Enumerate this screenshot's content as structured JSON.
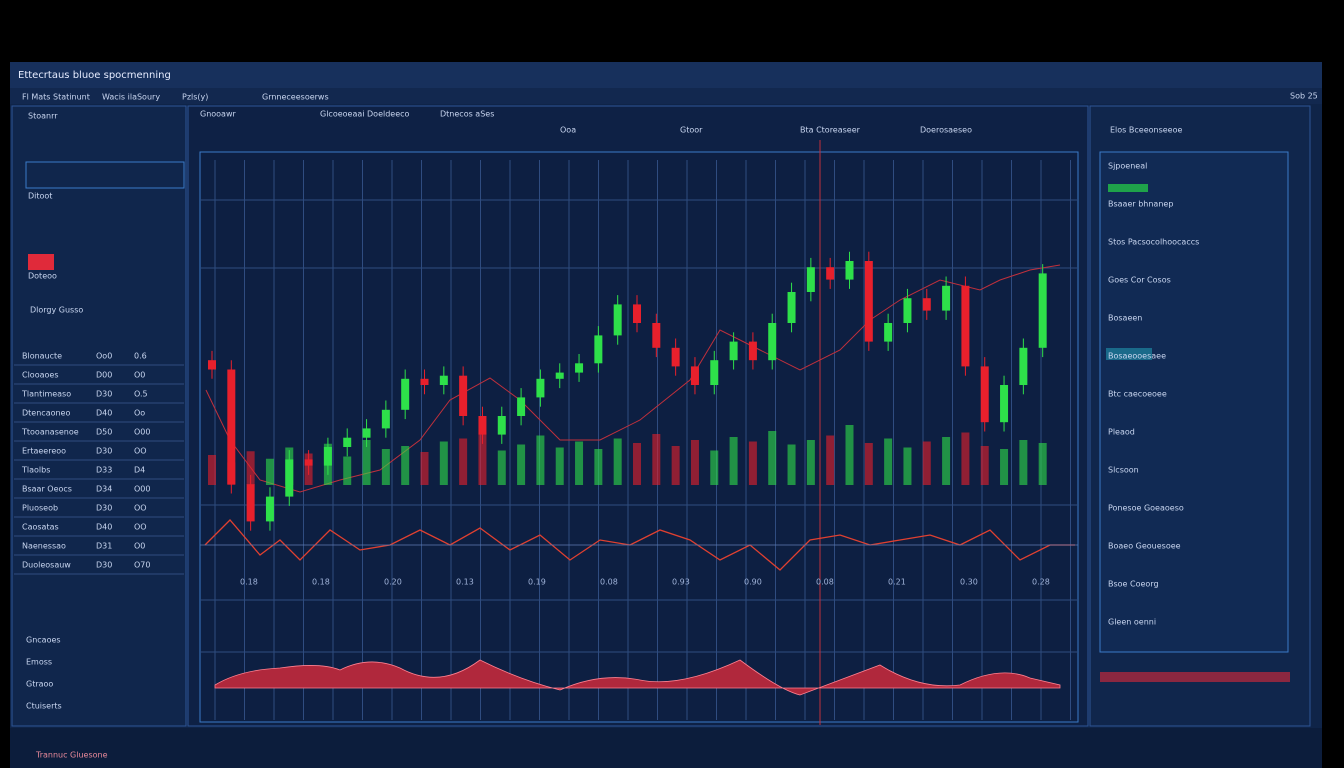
{
  "header": {
    "title": "Ettecrtaus bluoe spocmenning",
    "menu": [
      "Fl Mats Statinunt",
      "Wacis ilaSoury",
      "Pzls(y)",
      "Grnneceesoerws"
    ],
    "status": "Sob 25"
  },
  "toolbar": [
    "Gnooawr",
    "Glcoeoeaai Doeldeeco",
    "Dtnecos aSes",
    "Ooa",
    "Gtoor",
    "Bta Ctoreaseer",
    "Doerosaeseo"
  ],
  "sidebar": {
    "top": [
      "Stoanrr",
      "Ditoot",
      "Doteoo"
    ],
    "section": "Dlorgy Gusso",
    "rows": [
      [
        "Blonaucte",
        "Oo0",
        "0.6"
      ],
      [
        "Clooaoes",
        "D00",
        "O0"
      ],
      [
        "Tlantimeaso",
        "D30",
        "O.5"
      ],
      [
        "Dtencaoneo",
        "D40",
        "Oo"
      ],
      [
        "Ttooanasenoe",
        "D50",
        "O00"
      ],
      [
        "Ertaeereoo",
        "D30",
        "OO"
      ],
      [
        "Tlaolbs",
        "D33",
        "D4"
      ],
      [
        "Bsaar Oeocs",
        "D34",
        "O00"
      ],
      [
        "Pluoseob",
        "D30",
        "OO"
      ],
      [
        "Caosatas",
        "D40",
        "OO"
      ],
      [
        "Naenessao",
        "D31",
        "O0"
      ],
      [
        "Duoleosauw",
        "D30",
        "O70"
      ]
    ],
    "bottom": [
      "Gncaoes",
      "Emoss",
      "Gtraoo",
      "Ctuiserts"
    ],
    "footer": "Trannuc Gluesone"
  },
  "chart_labels": [
    "0.18",
    "0.18",
    "0.20",
    "0.13",
    "0.19",
    "0.08",
    "0.93",
    "0.90",
    "0.08",
    "0.21",
    "0.30",
    "0.28"
  ],
  "chart_data": {
    "type": "candlestick",
    "open": [
      58,
      55,
      18,
      6,
      14,
      26,
      24,
      30,
      33,
      36,
      42,
      52,
      50,
      53,
      40,
      34,
      40,
      46,
      52,
      54,
      57,
      66,
      76,
      70,
      62,
      56,
      50,
      58,
      64,
      58,
      70,
      80,
      88,
      84,
      90,
      64,
      70,
      78,
      74,
      82,
      56,
      38,
      50,
      62
    ],
    "high": [
      61,
      58,
      21,
      17,
      29,
      29,
      33,
      36,
      39,
      45,
      55,
      55,
      56,
      56,
      43,
      43,
      49,
      55,
      57,
      60,
      69,
      79,
      79,
      73,
      65,
      59,
      61,
      67,
      67,
      73,
      83,
      91,
      91,
      93,
      93,
      73,
      81,
      81,
      85,
      85,
      59,
      53,
      65,
      89
    ],
    "low": [
      52,
      15,
      3,
      3,
      11,
      21,
      21,
      27,
      30,
      33,
      39,
      47,
      47,
      37,
      31,
      31,
      37,
      43,
      49,
      51,
      54,
      63,
      67,
      59,
      53,
      47,
      47,
      55,
      55,
      55,
      67,
      77,
      81,
      81,
      61,
      61,
      67,
      71,
      71,
      53,
      35,
      35,
      47,
      59
    ],
    "close": [
      55,
      18,
      6,
      14,
      26,
      24,
      30,
      33,
      36,
      42,
      52,
      50,
      53,
      40,
      34,
      40,
      46,
      52,
      54,
      57,
      66,
      76,
      70,
      62,
      56,
      50,
      58,
      64,
      58,
      70,
      80,
      88,
      84,
      90,
      64,
      70,
      78,
      74,
      82,
      56,
      38,
      50,
      62,
      86
    ],
    "volume": [
      40,
      30,
      45,
      35,
      50,
      42,
      55,
      38,
      60,
      48,
      52,
      44,
      58,
      62,
      70,
      46,
      54,
      66,
      50,
      58,
      48,
      62,
      56,
      68,
      52,
      60,
      46,
      64,
      58,
      72,
      54,
      60,
      66,
      80,
      56,
      62,
      50,
      58,
      64,
      70,
      52,
      48,
      60,
      56
    ],
    "ylim": [
      0,
      100
    ],
    "up_color": "#2ee04a",
    "down_color": "#e8202c"
  },
  "right_panel": {
    "head": "Elos Bceeonseeoe",
    "items": [
      "Sjpoeneal",
      "Bsaaer bhnanep",
      "Stos Pacsocolhoocaccs",
      "Goes Cor Cosos",
      "Bosaeen",
      "Bosaeooesaee",
      "Btc caecoeoee",
      "Pleaod",
      "Slcsoon",
      "Ponesoe Goeaoeso",
      "Boaeo Geouesoee",
      "Bsoe Coeorg",
      "Gleen oenni"
    ]
  }
}
